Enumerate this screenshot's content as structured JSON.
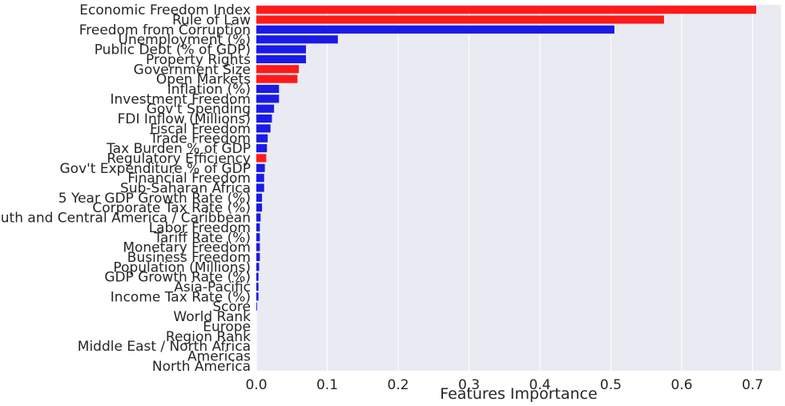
{
  "chart_data": {
    "type": "bar",
    "orientation": "horizontal",
    "xlabel": "Features Importance",
    "ylabel": "",
    "title": "",
    "xlim": [
      0,
      0.74
    ],
    "xticks": [
      0.0,
      0.1,
      0.2,
      0.3,
      0.4,
      0.5,
      0.6,
      0.7
    ],
    "xtick_labels": [
      "0.0",
      "0.1",
      "0.2",
      "0.3",
      "0.4",
      "0.5",
      "0.6",
      "0.7"
    ],
    "grid": true,
    "background": "#EAEAF2",
    "colors": {
      "red": "#FF1A1A",
      "blue": "#1A1AE6"
    },
    "categories": [
      "Economic Freedom Index",
      "Rule of Law",
      "Freedom from Corruption",
      "Unemployment (%)",
      "Public Debt (% of GDP)",
      "Property Rights",
      "Government Size",
      "Open Markets",
      "Inflation (%)",
      "Investment Freedom",
      "Gov't Spending",
      "FDI Inflow (Millions)",
      "Fiscal Freedom",
      "Trade Freedom",
      "Tax Burden % of GDP",
      "Regulatory Efficiency",
      "Gov't Expenditure % of GDP",
      "Financial Freedom",
      "Sub-Saharan Africa",
      "5 Year GDP Growth Rate (%)",
      "Corporate Tax Rate (%)",
      "South and Central America / Caribbean",
      "Labor Freedom",
      "Tariff Rate (%)",
      "Monetary Freedom",
      "Business Freedom",
      "Population (Millions)",
      "GDP Growth Rate (%)",
      "Asia-Pacific",
      "Income Tax Rate (%)",
      "Score",
      "World Rank",
      "Europe",
      "Region Rank",
      "Middle East / North Africa",
      "Americas",
      "North America"
    ],
    "values": [
      0.705,
      0.575,
      0.505,
      0.115,
      0.07,
      0.07,
      0.06,
      0.058,
      0.032,
      0.032,
      0.025,
      0.022,
      0.02,
      0.016,
      0.015,
      0.014,
      0.012,
      0.011,
      0.011,
      0.008,
      0.008,
      0.006,
      0.005,
      0.005,
      0.005,
      0.005,
      0.004,
      0.003,
      0.003,
      0.003,
      0.001,
      0.0,
      0.0,
      0.0,
      0.0,
      0.0,
      0.0
    ],
    "bar_colors": [
      "red",
      "red",
      "blue",
      "blue",
      "blue",
      "blue",
      "red",
      "red",
      "blue",
      "blue",
      "blue",
      "blue",
      "blue",
      "blue",
      "blue",
      "red",
      "blue",
      "blue",
      "blue",
      "blue",
      "blue",
      "blue",
      "blue",
      "blue",
      "blue",
      "blue",
      "blue",
      "blue",
      "blue",
      "blue",
      "blue",
      "blue",
      "blue",
      "blue",
      "blue",
      "blue",
      "blue"
    ]
  }
}
